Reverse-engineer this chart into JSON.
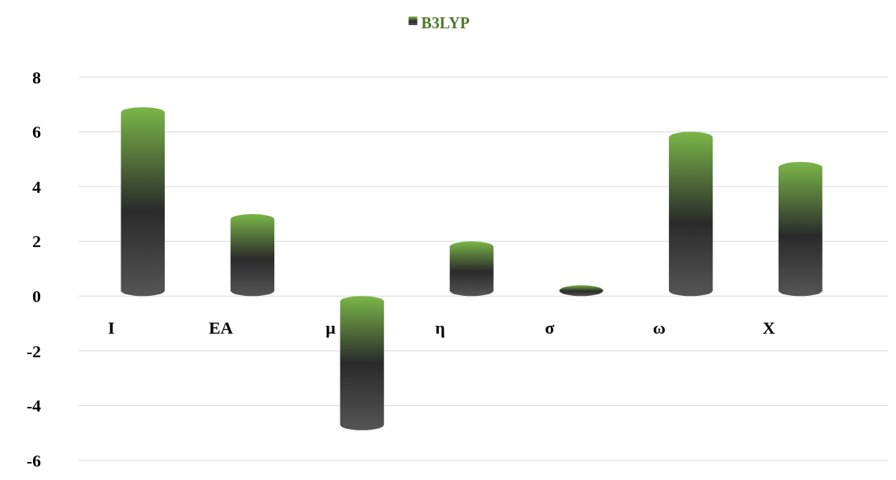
{
  "chart_data": {
    "type": "bar",
    "categories": [
      "I",
      "EA",
      "μ",
      "η",
      "σ",
      "ω",
      "X"
    ],
    "series": [
      {
        "name": "B3LYP",
        "color": "#7ab648",
        "values": [
          6.9,
          3.0,
          -4.9,
          2.0,
          0.4,
          6.0,
          4.9
        ]
      }
    ],
    "ylim": [
      -6,
      8
    ],
    "yticks": [
      -6,
      -4,
      -2,
      0,
      2,
      4,
      6,
      8
    ],
    "grid": "y",
    "legend": "top"
  }
}
